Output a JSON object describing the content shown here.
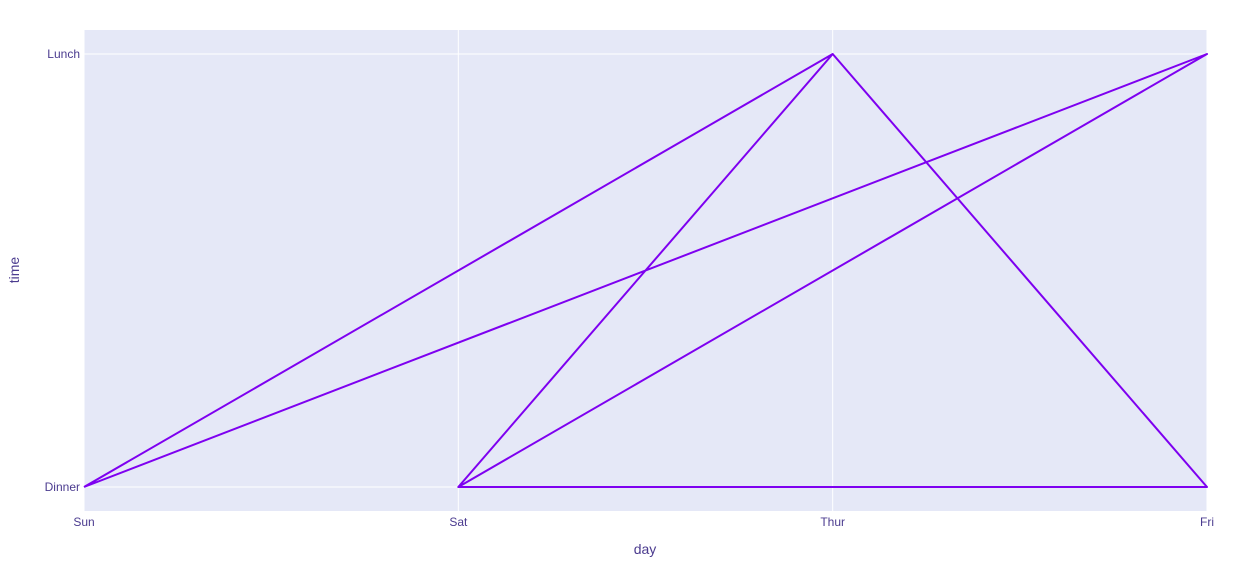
{
  "chart_data": {
    "type": "line",
    "title": "",
    "xlabel": "day",
    "ylabel": "time",
    "x_categories": [
      "Sun",
      "Sat",
      "Thur",
      "Fri"
    ],
    "y_categories": [
      "Dinner",
      "Lunch"
    ],
    "x": [
      "Sun",
      "Thur",
      "Sat",
      "Thur",
      "Fri",
      "Sat",
      "Fri",
      "Sun"
    ],
    "y": [
      "Dinner",
      "Lunch",
      "Dinner",
      "Lunch",
      "Dinner",
      "Dinner",
      "Lunch",
      "Dinner"
    ],
    "grid": true,
    "colors": {
      "line": "#7e00f0",
      "plot_bg": "#e5e8f7",
      "grid": "#ffffff",
      "text": "#4b3b8f"
    }
  }
}
